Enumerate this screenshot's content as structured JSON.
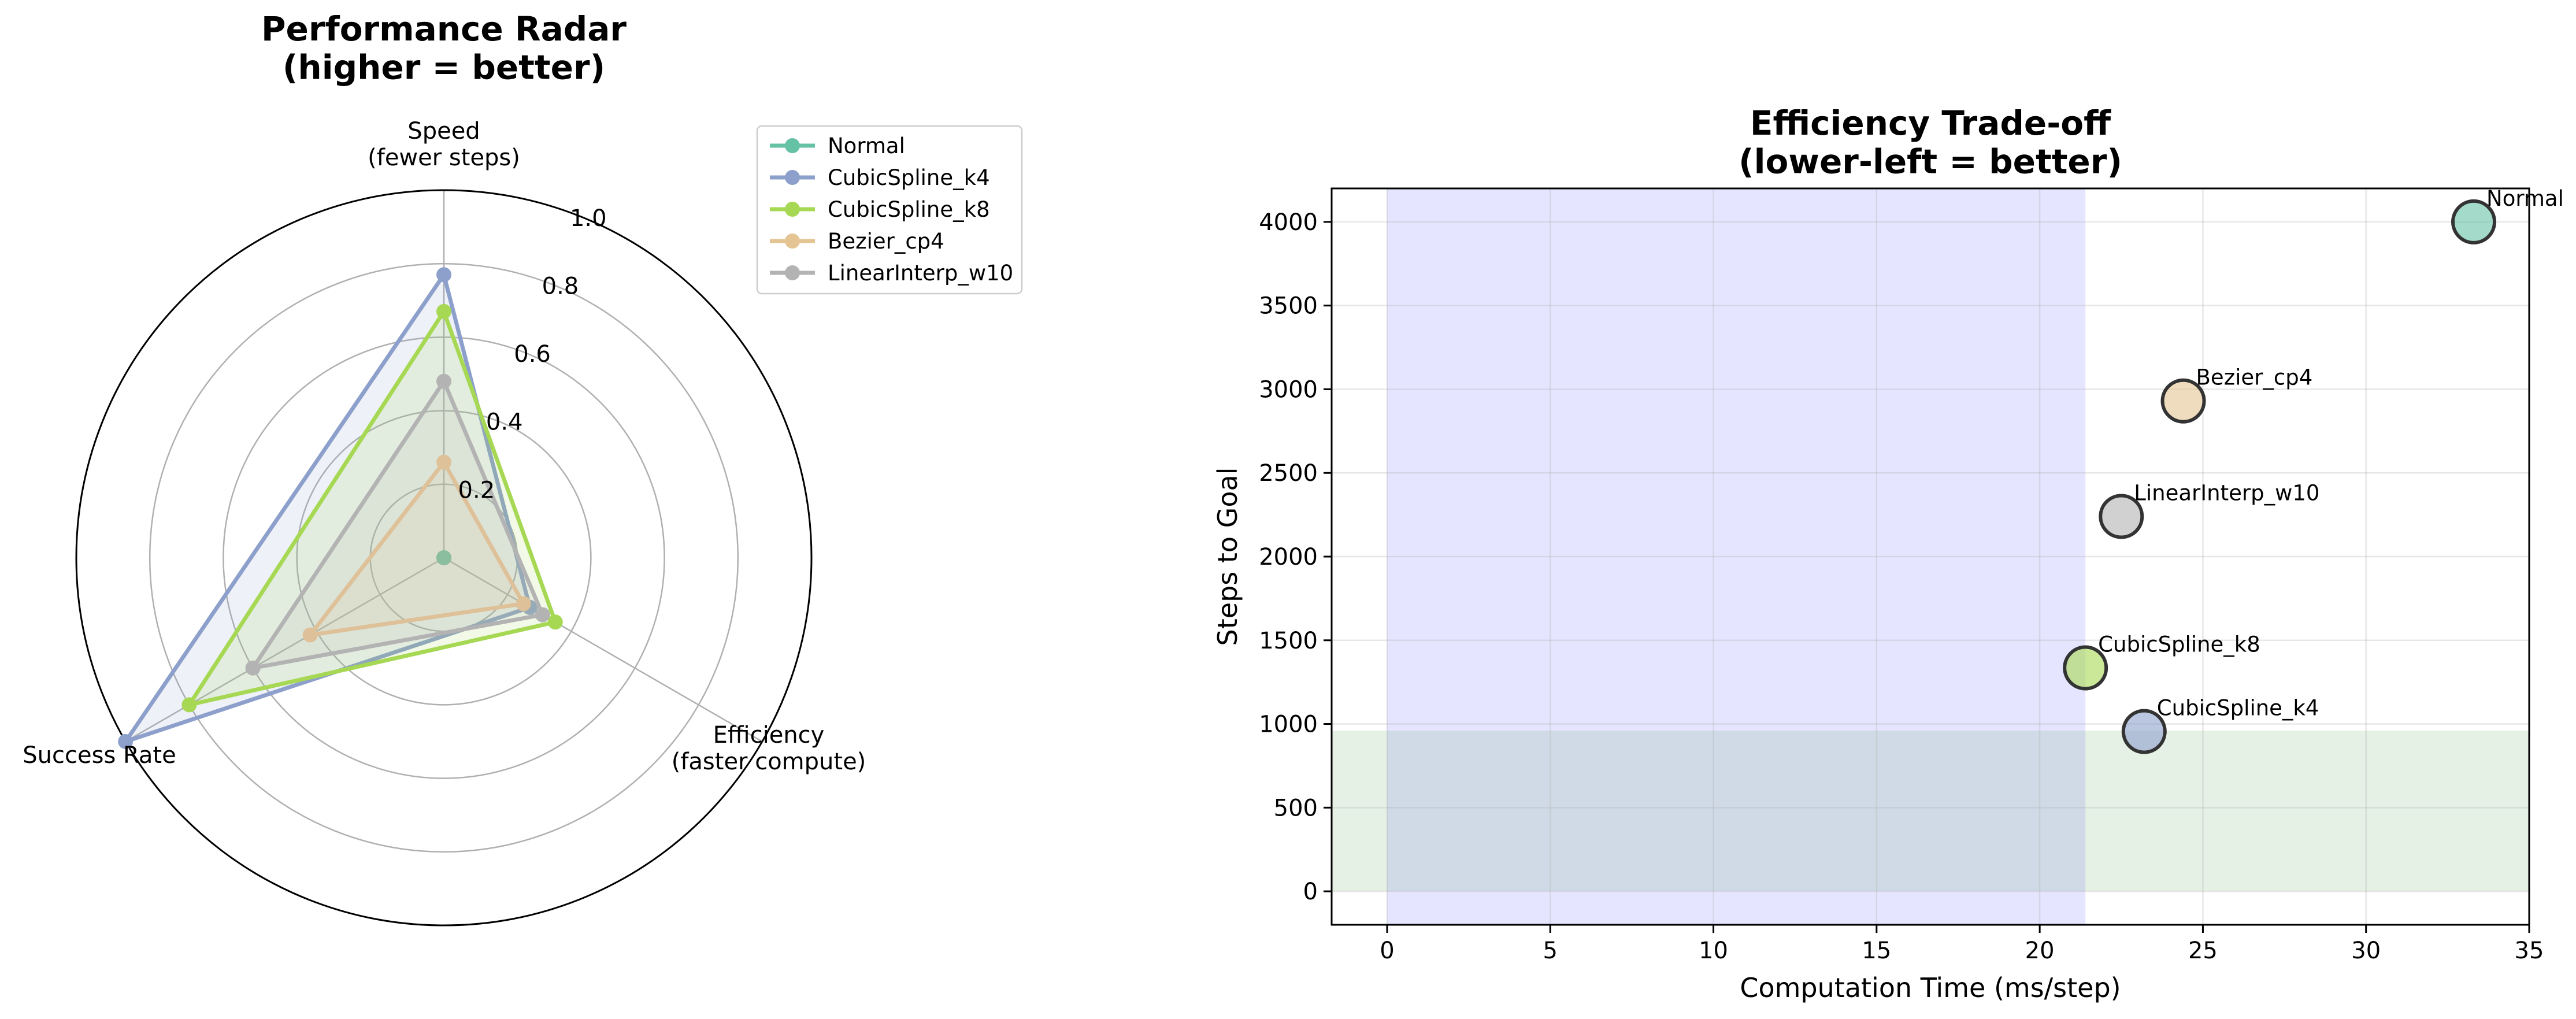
{
  "chart_data": [
    {
      "type": "radar",
      "title": "Performance Radar\n(higher = better)",
      "axes": [
        "Speed\n(fewer steps)",
        "Efficiency\n(faster compute)",
        "Success Rate"
      ],
      "rticks": [
        "0.2",
        "0.4",
        "0.6",
        "0.8",
        "1.0"
      ],
      "rlim": [
        0,
        1
      ],
      "legend_position": "upper-right",
      "series": [
        {
          "name": "Normal",
          "color": "#66c2a5",
          "values": [
            0.0,
            0.0,
            0.0
          ]
        },
        {
          "name": "CubicSpline_k4",
          "color": "#8da0cb",
          "values": [
            0.77,
            0.27,
            1.0
          ]
        },
        {
          "name": "CubicSpline_k8",
          "color": "#a6d854",
          "values": [
            0.67,
            0.35,
            0.8
          ]
        },
        {
          "name": "Bezier_cp4",
          "color": "#e5c494",
          "values": [
            0.26,
            0.25,
            0.42
          ]
        },
        {
          "name": "LinearInterp_w10",
          "color": "#b3b3b3",
          "values": [
            0.48,
            0.31,
            0.6
          ]
        }
      ]
    },
    {
      "type": "scatter",
      "title": "Efficiency Trade-off\n(lower-left = better)",
      "xlabel": "Computation Time (ms/step)",
      "ylabel": "Steps to Goal",
      "xlim": [
        -1.7,
        35
      ],
      "ylim": [
        -200,
        4200
      ],
      "xticks": [
        "0",
        "5",
        "10",
        "15",
        "20",
        "25",
        "30",
        "35"
      ],
      "yticks": [
        "0",
        "500",
        "1000",
        "1500",
        "2000",
        "2500",
        "3000",
        "3500",
        "4000"
      ],
      "grid": true,
      "shaded_regions": [
        {
          "axis": "x",
          "from": 0,
          "to": 21.4,
          "color": "#0000ff"
        },
        {
          "axis": "y",
          "from": 0,
          "to": 960,
          "color": "#2e8b2e"
        }
      ],
      "points": [
        {
          "label": "Normal",
          "x": 33.3,
          "y": 4000,
          "color": "#66c2a5"
        },
        {
          "label": "Bezier_cp4",
          "x": 24.4,
          "y": 2930,
          "color": "#e5c494"
        },
        {
          "label": "LinearInterp_w10",
          "x": 22.5,
          "y": 2240,
          "color": "#b3b3b3"
        },
        {
          "label": "CubicSpline_k8",
          "x": 21.4,
          "y": 1335,
          "color": "#a6d854"
        },
        {
          "label": "CubicSpline_k4",
          "x": 23.2,
          "y": 955,
          "color": "#8da0cb"
        }
      ]
    }
  ]
}
